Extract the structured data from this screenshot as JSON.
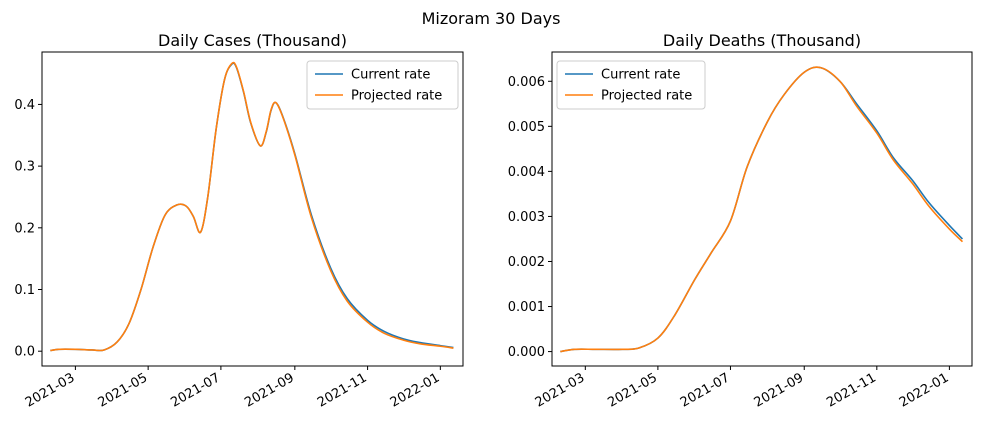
{
  "figure": {
    "suptitle": "Mizoram 30 Days"
  },
  "colors": {
    "current": "#1f77b4",
    "projected": "#ff7f0e"
  },
  "chart_data": [
    {
      "type": "line",
      "title": "Daily Cases (Thousand)",
      "xlabel": "",
      "ylabel": "",
      "xlim": [
        "2021-02-01",
        "2022-01-20"
      ],
      "ylim": [
        -0.024,
        0.485
      ],
      "x_ticks": [
        "2021-03",
        "2021-05",
        "2021-07",
        "2021-09",
        "2021-11",
        "2022-01"
      ],
      "y_ticks": [
        "0.0",
        "0.1",
        "0.2",
        "0.3",
        "0.4"
      ],
      "legend": {
        "position": "top-right",
        "entries": [
          "Current rate",
          "Projected rate"
        ]
      },
      "grid": false,
      "series": [
        {
          "name": "Current rate",
          "x": [
            "2021-02-08",
            "2021-02-15",
            "2021-03-01",
            "2021-03-15",
            "2021-03-25",
            "2021-04-05",
            "2021-04-15",
            "2021-04-25",
            "2021-05-05",
            "2021-05-15",
            "2021-05-25",
            "2021-06-02",
            "2021-06-08",
            "2021-06-14",
            "2021-06-20",
            "2021-06-27",
            "2021-07-04",
            "2021-07-10",
            "2021-07-14",
            "2021-07-20",
            "2021-07-26",
            "2021-08-03",
            "2021-08-08",
            "2021-08-12",
            "2021-08-16",
            "2021-08-22",
            "2021-09-01",
            "2021-09-15",
            "2021-10-01",
            "2021-10-15",
            "2021-11-01",
            "2021-11-15",
            "2021-12-01",
            "2021-12-15",
            "2022-01-01",
            "2022-01-12"
          ],
          "y": [
            0.001,
            0.003,
            0.003,
            0.002,
            0.002,
            0.015,
            0.045,
            0.1,
            0.168,
            0.22,
            0.237,
            0.235,
            0.218,
            0.193,
            0.25,
            0.36,
            0.44,
            0.465,
            0.46,
            0.42,
            0.37,
            0.333,
            0.355,
            0.39,
            0.403,
            0.38,
            0.32,
            0.22,
            0.135,
            0.085,
            0.05,
            0.032,
            0.02,
            0.014,
            0.009,
            0.006
          ]
        },
        {
          "name": "Projected rate",
          "x": [
            "2021-02-08",
            "2021-02-15",
            "2021-03-01",
            "2021-03-15",
            "2021-03-25",
            "2021-04-05",
            "2021-04-15",
            "2021-04-25",
            "2021-05-05",
            "2021-05-15",
            "2021-05-25",
            "2021-06-02",
            "2021-06-08",
            "2021-06-14",
            "2021-06-20",
            "2021-06-27",
            "2021-07-04",
            "2021-07-10",
            "2021-07-14",
            "2021-07-20",
            "2021-07-26",
            "2021-08-03",
            "2021-08-08",
            "2021-08-12",
            "2021-08-16",
            "2021-08-22",
            "2021-09-01",
            "2021-09-15",
            "2021-10-01",
            "2021-10-15",
            "2021-11-01",
            "2021-11-15",
            "2021-12-01",
            "2021-12-15",
            "2022-01-01",
            "2022-01-12"
          ],
          "y": [
            0.001,
            0.003,
            0.003,
            0.002,
            0.002,
            0.015,
            0.045,
            0.1,
            0.168,
            0.22,
            0.237,
            0.235,
            0.218,
            0.193,
            0.25,
            0.36,
            0.44,
            0.466,
            0.461,
            0.421,
            0.371,
            0.333,
            0.356,
            0.391,
            0.403,
            0.379,
            0.318,
            0.216,
            0.131,
            0.081,
            0.047,
            0.029,
            0.018,
            0.012,
            0.008,
            0.005
          ]
        }
      ]
    },
    {
      "type": "line",
      "title": "Daily Deaths (Thousand)",
      "xlabel": "",
      "ylabel": "",
      "xlim": [
        "2021-02-01",
        "2022-01-20"
      ],
      "ylim": [
        -0.00032,
        0.00665
      ],
      "x_ticks": [
        "2021-03",
        "2021-05",
        "2021-07",
        "2021-09",
        "2021-11",
        "2022-01"
      ],
      "y_ticks": [
        "0.000",
        "0.001",
        "0.002",
        "0.003",
        "0.004",
        "0.005",
        "0.006"
      ],
      "legend": {
        "position": "top-left",
        "entries": [
          "Current rate",
          "Projected rate"
        ]
      },
      "grid": false,
      "series": [
        {
          "name": "Current rate",
          "x": [
            "2021-02-08",
            "2021-02-20",
            "2021-03-10",
            "2021-04-01",
            "2021-04-15",
            "2021-05-01",
            "2021-05-15",
            "2021-06-01",
            "2021-06-15",
            "2021-07-01",
            "2021-07-15",
            "2021-08-01",
            "2021-08-15",
            "2021-09-01",
            "2021-09-15",
            "2021-10-01",
            "2021-10-15",
            "2021-11-01",
            "2021-11-15",
            "2021-12-01",
            "2021-12-15",
            "2022-01-01",
            "2022-01-12"
          ],
          "y": [
            0.0,
            5e-05,
            5e-05,
            5e-05,
            8e-05,
            0.0003,
            0.0008,
            0.0016,
            0.0022,
            0.0029,
            0.0041,
            0.0051,
            0.0057,
            0.0062,
            0.0063,
            0.006,
            0.0055,
            0.0049,
            0.0043,
            0.0038,
            0.0033,
            0.0028,
            0.0025
          ]
        },
        {
          "name": "Projected rate",
          "x": [
            "2021-02-08",
            "2021-02-20",
            "2021-03-10",
            "2021-04-01",
            "2021-04-15",
            "2021-05-01",
            "2021-05-15",
            "2021-06-01",
            "2021-06-15",
            "2021-07-01",
            "2021-07-15",
            "2021-08-01",
            "2021-08-15",
            "2021-09-01",
            "2021-09-15",
            "2021-10-01",
            "2021-10-15",
            "2021-11-01",
            "2021-11-15",
            "2021-12-01",
            "2021-12-15",
            "2022-01-01",
            "2022-01-12"
          ],
          "y": [
            0.0,
            5e-05,
            5e-05,
            5e-05,
            8e-05,
            0.0003,
            0.0008,
            0.0016,
            0.0022,
            0.0029,
            0.0041,
            0.0051,
            0.0057,
            0.0062,
            0.0063,
            0.006,
            0.00545,
            0.00485,
            0.00425,
            0.00373,
            0.00322,
            0.00272,
            0.00244
          ]
        }
      ]
    }
  ]
}
